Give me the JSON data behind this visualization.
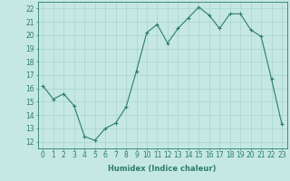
{
  "x": [
    0,
    1,
    2,
    3,
    4,
    5,
    6,
    7,
    8,
    9,
    10,
    11,
    12,
    13,
    14,
    15,
    16,
    17,
    18,
    19,
    20,
    21,
    22,
    23
  ],
  "y": [
    16.2,
    15.2,
    15.6,
    14.7,
    12.4,
    12.1,
    13.0,
    13.4,
    14.6,
    17.3,
    20.2,
    20.8,
    19.4,
    20.5,
    21.3,
    22.1,
    21.5,
    20.5,
    21.6,
    21.6,
    20.4,
    19.9,
    16.7,
    13.3
  ],
  "line_color": "#2d7d6d",
  "marker": "+",
  "marker_size": 3,
  "bg_color": "#c5e8e2",
  "grid_color": "#a8d4cc",
  "axis_color": "#2d7d6d",
  "xlabel": "Humidex (Indice chaleur)",
  "ylim": [
    11.5,
    22.5
  ],
  "xlim": [
    -0.5,
    23.5
  ],
  "yticks": [
    12,
    13,
    14,
    15,
    16,
    17,
    18,
    19,
    20,
    21,
    22
  ],
  "xticks": [
    0,
    1,
    2,
    3,
    4,
    5,
    6,
    7,
    8,
    9,
    10,
    11,
    12,
    13,
    14,
    15,
    16,
    17,
    18,
    19,
    20,
    21,
    22,
    23
  ],
  "xlabel_fontsize": 6.0,
  "tick_fontsize": 5.5
}
